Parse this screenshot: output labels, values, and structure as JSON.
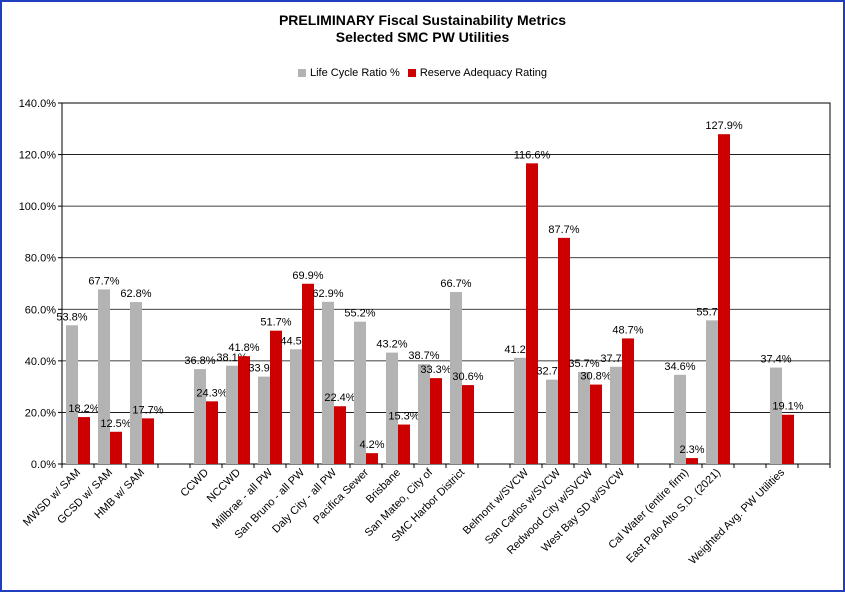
{
  "chart_data": {
    "type": "bar",
    "title": "PRELIMINARY Fiscal Sustainability Metrics",
    "subtitle": "Selected SMC PW Utilities",
    "legend_position": "top-center",
    "grid": true,
    "ylim": [
      0,
      140
    ],
    "yticks": [
      "0.0%",
      "20.0%",
      "40.0%",
      "60.0%",
      "80.0%",
      "100.0%",
      "120.0%",
      "140.0%"
    ],
    "slots": 24,
    "categories": [
      {
        "label": "MWSD w/ SAM",
        "slot": 0
      },
      {
        "label": "GCSD w/ SAM",
        "slot": 1
      },
      {
        "label": "HMB w/ SAM",
        "slot": 2
      },
      {
        "label": "CCWD",
        "slot": 4
      },
      {
        "label": "NCCWD",
        "slot": 5
      },
      {
        "label": "Millbrae - all PW",
        "slot": 6
      },
      {
        "label": "San Bruno - all PW",
        "slot": 7
      },
      {
        "label": "Daly City - all PW",
        "slot": 8
      },
      {
        "label": "Pacifica Sewer",
        "slot": 9
      },
      {
        "label": "Brisbane",
        "slot": 10
      },
      {
        "label": "San Mateo, City of",
        "slot": 11
      },
      {
        "label": "SMC Harbor District",
        "slot": 12
      },
      {
        "label": "Belmont w/SVCW",
        "slot": 14
      },
      {
        "label": "San Carlos w/SVCW",
        "slot": 15
      },
      {
        "label": "Redwood City w/SVCW",
        "slot": 16
      },
      {
        "label": "West Bay SD w/SVCW",
        "slot": 17
      },
      {
        "label": "Cal Water (entire firm)",
        "slot": 19
      },
      {
        "label": "East Palo Alto S.D. (2021)",
        "slot": 20
      },
      {
        "label": "Weighted Avg. PW Utilities",
        "slot": 22
      }
    ],
    "series": [
      {
        "name": "Life Cycle Ratio %",
        "color": "#b3b3b3",
        "values": [
          53.8,
          67.7,
          62.8,
          36.8,
          38.1,
          33.9,
          44.5,
          62.9,
          55.2,
          43.2,
          38.7,
          66.7,
          41.2,
          32.7,
          35.7,
          37.7,
          34.6,
          55.7,
          37.4
        ],
        "labels": [
          "53.8%",
          "67.7%",
          "62.8%",
          "36.8%",
          "38.1%",
          "33.9%",
          "44.5%",
          "62.9%",
          "55.2%",
          "43.2%",
          "38.7%",
          "66.7%",
          "41.2%",
          "32.7%",
          "35.7%",
          "37.7%",
          "34.6%",
          "55.7%",
          "37.4%"
        ]
      },
      {
        "name": "Reserve Adequacy Rating",
        "color": "#cc0000",
        "values": [
          18.2,
          12.5,
          17.7,
          24.3,
          41.8,
          51.7,
          69.9,
          22.4,
          4.2,
          15.3,
          33.3,
          30.6,
          116.6,
          87.7,
          30.8,
          48.7,
          2.3,
          127.9,
          19.1
        ],
        "labels": [
          "18.2%",
          "12.5%",
          "17.7%",
          "24.3%",
          "41.8%",
          "51.7%",
          "69.9%",
          "22.4%",
          "4.2%",
          "15.3%",
          "33.3%",
          "30.6%",
          "116.6%",
          "87.7%",
          "30.8%",
          "48.7%",
          "2.3%",
          "127.9%",
          "19.1%"
        ]
      }
    ]
  }
}
